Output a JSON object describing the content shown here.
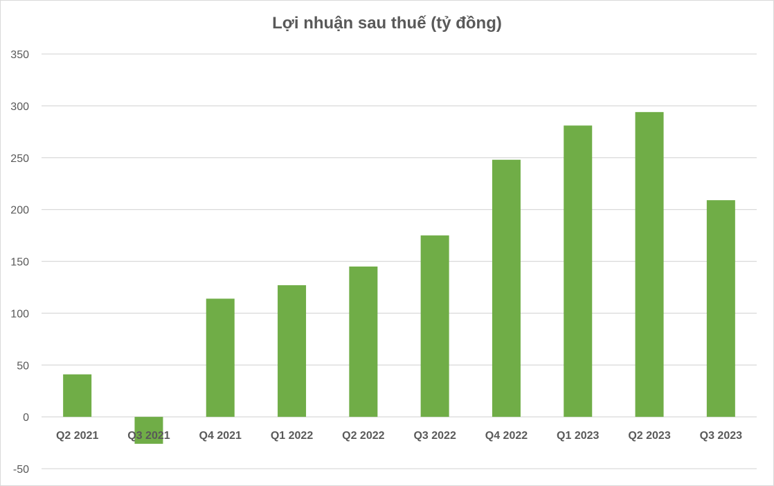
{
  "chart_data": {
    "type": "bar",
    "title": "Lợi nhuận sau thuế (tỷ đồng)",
    "xlabel": "",
    "ylabel": "",
    "categories": [
      "Q2 2021",
      "Q3 2021",
      "Q4 2021",
      "Q1 2022",
      "Q2 2022",
      "Q3 2022",
      "Q4 2022",
      "Q1 2023",
      "Q2 2023",
      "Q3 2023"
    ],
    "values": [
      41,
      -26,
      114,
      127,
      145,
      175,
      248,
      281,
      294,
      209
    ],
    "ylim": [
      -50,
      350
    ],
    "yticks": [
      "-50",
      "0",
      "50",
      "100",
      "150",
      "200",
      "250",
      "300",
      "350"
    ],
    "grid": true,
    "legend": "none",
    "bar_color": "#70ad47",
    "grid_color": "#d9d9d9",
    "text_color": "#595959"
  }
}
